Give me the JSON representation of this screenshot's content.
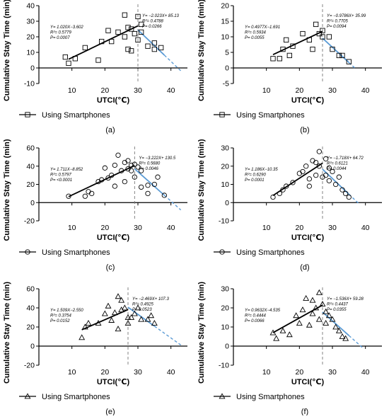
{
  "figure": {
    "ylabel": "Cumulative Stay Time (min)",
    "xlabel": "UTCI(℃)",
    "legend_marker_color": "#000000",
    "colors": {
      "left_fit": "#000000",
      "right_fit": "#5b9bd5",
      "divider": "#777777",
      "axis": "#000000"
    }
  },
  "chart_data": [
    {
      "id": "a",
      "panel_label": "(a)",
      "type": "scatter",
      "marker": "square",
      "legend": "Using Smartphones",
      "xlim": [
        0,
        45
      ],
      "ylim": [
        -10,
        40
      ],
      "xticks": [
        10,
        20,
        30,
        40
      ],
      "yticks": [
        -10,
        0,
        10,
        20,
        30,
        40
      ],
      "divider_x": 30,
      "points": [
        [
          8,
          7
        ],
        [
          9,
          3
        ],
        [
          11,
          6
        ],
        [
          14,
          13
        ],
        [
          18,
          5
        ],
        [
          19,
          17
        ],
        [
          21,
          24
        ],
        [
          22,
          17
        ],
        [
          24,
          23
        ],
        [
          26,
          20
        ],
        [
          26,
          34
        ],
        [
          27,
          26
        ],
        [
          27,
          12
        ],
        [
          28,
          25
        ],
        [
          28,
          11
        ],
        [
          29,
          22
        ],
        [
          30,
          33
        ],
        [
          30,
          18
        ],
        [
          31,
          23
        ],
        [
          31,
          28
        ],
        [
          33,
          14
        ],
        [
          35,
          16
        ],
        [
          35,
          12
        ],
        [
          37,
          13
        ]
      ],
      "left_fit": {
        "eq": "Y= 1.020X−3.602",
        "r2": "R²= 0.5779",
        "p": "P= 0.0007",
        "x_range": [
          9,
          30
        ]
      },
      "right_fit": {
        "eq": "Y= −2.023X+ 85.13",
        "r2": "R²= 0.4788",
        "p": "P= 0.0266",
        "solid_x": [
          30,
          38
        ],
        "dash_x": [
          38,
          43
        ]
      }
    },
    {
      "id": "b",
      "panel_label": "(b)",
      "type": "scatter",
      "marker": "square",
      "legend": "Using Smartphones",
      "xlim": [
        0,
        45
      ],
      "ylim": [
        -5,
        20
      ],
      "xticks": [
        10,
        20,
        30,
        40
      ],
      "yticks": [
        -5,
        0,
        5,
        10,
        15,
        20
      ],
      "divider_x": 27,
      "points": [
        [
          12,
          3
        ],
        [
          14,
          3
        ],
        [
          15,
          6
        ],
        [
          16,
          9
        ],
        [
          17,
          4
        ],
        [
          18,
          7
        ],
        [
          21,
          11
        ],
        [
          23,
          9
        ],
        [
          24,
          6
        ],
        [
          25,
          14
        ],
        [
          26,
          11
        ],
        [
          27,
          10
        ],
        [
          27,
          12
        ],
        [
          29,
          10
        ],
        [
          30,
          6
        ],
        [
          32,
          4
        ],
        [
          33,
          4
        ],
        [
          35,
          2
        ]
      ],
      "left_fit": {
        "eq": "Y= 0.4977X−1.691",
        "r2": "R²= 0.5934",
        "p": "P= 0.0055",
        "x_range": [
          12,
          27
        ]
      },
      "right_fit": {
        "eq": "Y= −0.9786X+ 35.99",
        "r2": "R²= 0.7705",
        "p": "P= 0.0094",
        "solid_x": [
          27,
          35
        ],
        "dash_x": [
          35,
          37
        ]
      }
    },
    {
      "id": "c",
      "panel_label": "(c)",
      "type": "scatter",
      "marker": "circle",
      "legend": "Using Smartphones",
      "xlim": [
        0,
        45
      ],
      "ylim": [
        -20,
        60
      ],
      "xticks": [
        10,
        20,
        30,
        40
      ],
      "yticks": [
        -20,
        0,
        20,
        40,
        60
      ],
      "divider_x": 29,
      "points": [
        [
          9,
          7
        ],
        [
          14,
          7
        ],
        [
          15,
          12
        ],
        [
          16,
          10
        ],
        [
          18,
          23
        ],
        [
          19,
          25
        ],
        [
          20,
          38
        ],
        [
          21,
          27
        ],
        [
          22,
          30
        ],
        [
          23,
          41
        ],
        [
          23,
          18
        ],
        [
          24,
          52
        ],
        [
          25,
          35
        ],
        [
          26,
          44
        ],
        [
          26,
          23
        ],
        [
          27,
          46
        ],
        [
          27,
          37
        ],
        [
          28,
          41
        ],
        [
          28,
          35
        ],
        [
          29,
          28
        ],
        [
          29,
          42
        ],
        [
          30,
          39
        ],
        [
          31,
          35
        ],
        [
          31,
          17
        ],
        [
          33,
          19
        ],
        [
          33,
          10
        ],
        [
          35,
          20
        ],
        [
          36,
          28
        ],
        [
          38,
          8
        ]
      ],
      "left_fit": {
        "eq": "Y= 1.711X−8.852",
        "r2": "R²= 0.5797",
        "p": "P= <0.0001",
        "x_range": [
          9,
          29
        ]
      },
      "right_fit": {
        "eq": "Y= −3.222X+ 130.5",
        "r2": "R²= 0.5680",
        "p": "P= 0.0046",
        "solid_x": [
          29,
          38
        ],
        "dash_x": [
          38,
          43
        ]
      }
    },
    {
      "id": "d",
      "panel_label": "(d)",
      "type": "scatter",
      "marker": "circle",
      "legend": "Using Smartphones",
      "xlim": [
        0,
        45
      ],
      "ylim": [
        -10,
        30
      ],
      "xticks": [
        10,
        20,
        30,
        40
      ],
      "yticks": [
        -10,
        0,
        10,
        20,
        30
      ],
      "divider_x": 27,
      "points": [
        [
          12,
          3
        ],
        [
          14,
          5
        ],
        [
          15,
          7
        ],
        [
          16,
          9
        ],
        [
          18,
          11
        ],
        [
          20,
          16
        ],
        [
          21,
          17
        ],
        [
          22,
          20
        ],
        [
          23,
          9
        ],
        [
          23,
          13
        ],
        [
          24,
          23
        ],
        [
          25,
          15
        ],
        [
          25,
          22
        ],
        [
          26,
          20
        ],
        [
          26,
          28
        ],
        [
          27,
          14
        ],
        [
          28,
          24
        ],
        [
          28,
          15
        ],
        [
          29,
          12
        ],
        [
          29,
          19
        ],
        [
          30,
          17
        ],
        [
          31,
          10
        ],
        [
          32,
          14
        ],
        [
          33,
          7
        ],
        [
          34,
          5
        ],
        [
          35,
          3
        ]
      ],
      "left_fit": {
        "eq": "Y= 1.186X−10.35",
        "r2": "R²= 0.6290",
        "p": "P= 0.0001",
        "x_range": [
          12,
          27
        ]
      },
      "right_fit": {
        "eq": "Y= −1.718X+ 64.72",
        "r2": "R²= 0.6121",
        "p": "P= 0.0044",
        "solid_x": [
          27,
          35
        ],
        "dash_x": [
          35,
          38
        ]
      }
    },
    {
      "id": "e",
      "panel_label": "(e)",
      "type": "scatter",
      "marker": "triangle",
      "legend": "Using Smartphones",
      "xlim": [
        0,
        45
      ],
      "ylim": [
        -20,
        60
      ],
      "xticks": [
        10,
        20,
        30,
        40
      ],
      "yticks": [
        -20,
        0,
        20,
        40,
        60
      ],
      "divider_x": 27,
      "points": [
        [
          13,
          9
        ],
        [
          14,
          20
        ],
        [
          15,
          24
        ],
        [
          18,
          24
        ],
        [
          20,
          34
        ],
        [
          21,
          42
        ],
        [
          22,
          27
        ],
        [
          23,
          35
        ],
        [
          24,
          18
        ],
        [
          24,
          52
        ],
        [
          25,
          38
        ],
        [
          25,
          48
        ],
        [
          26,
          40
        ],
        [
          27,
          24
        ],
        [
          27,
          30
        ],
        [
          28,
          30
        ],
        [
          29,
          34
        ],
        [
          30,
          40
        ],
        [
          31,
          28
        ],
        [
          33,
          28
        ],
        [
          34,
          32
        ],
        [
          35,
          24
        ]
      ],
      "left_fit": {
        "eq": "Y= 1.509X−2.550",
        "r2": "R²= 0.3754",
        "p": "P= 0.0152",
        "x_range": [
          13,
          27
        ]
      },
      "right_fit": {
        "eq": "Y= −2.469X+ 107.3",
        "r2": "R²= 0.4925",
        "p": "P= 0.0523",
        "solid_x": [
          27,
          35
        ],
        "dash_x": [
          35,
          43
        ]
      }
    },
    {
      "id": "f",
      "panel_label": "(f)",
      "type": "scatter",
      "marker": "triangle",
      "legend": "Using Smartphones",
      "xlim": [
        0,
        45
      ],
      "ylim": [
        -10,
        30
      ],
      "xticks": [
        10,
        20,
        30,
        40
      ],
      "yticks": [
        -10,
        0,
        10,
        20,
        30
      ],
      "divider_x": 27,
      "points": [
        [
          12,
          7
        ],
        [
          13,
          4
        ],
        [
          15,
          8
        ],
        [
          17,
          6
        ],
        [
          19,
          16
        ],
        [
          20,
          12
        ],
        [
          21,
          19
        ],
        [
          22,
          25
        ],
        [
          23,
          11
        ],
        [
          24,
          17
        ],
        [
          24,
          24
        ],
        [
          25,
          20
        ],
        [
          26,
          14
        ],
        [
          26,
          28
        ],
        [
          27,
          22
        ],
        [
          28,
          18
        ],
        [
          28,
          12
        ],
        [
          29,
          16
        ],
        [
          30,
          14
        ],
        [
          31,
          10
        ],
        [
          32,
          8
        ],
        [
          33,
          5
        ],
        [
          34,
          4
        ]
      ],
      "left_fit": {
        "eq": "Y= 0.9632X−4.535",
        "r2": "R²= 0.4444",
        "p": "P= 0.0066",
        "x_range": [
          12,
          27
        ]
      },
      "right_fit": {
        "eq": "Y= −1.536X+ 59.28",
        "r2": "R²= 0.4437",
        "p": "P= 0.0355",
        "solid_x": [
          27,
          35
        ],
        "dash_x": [
          35,
          39
        ]
      }
    }
  ]
}
